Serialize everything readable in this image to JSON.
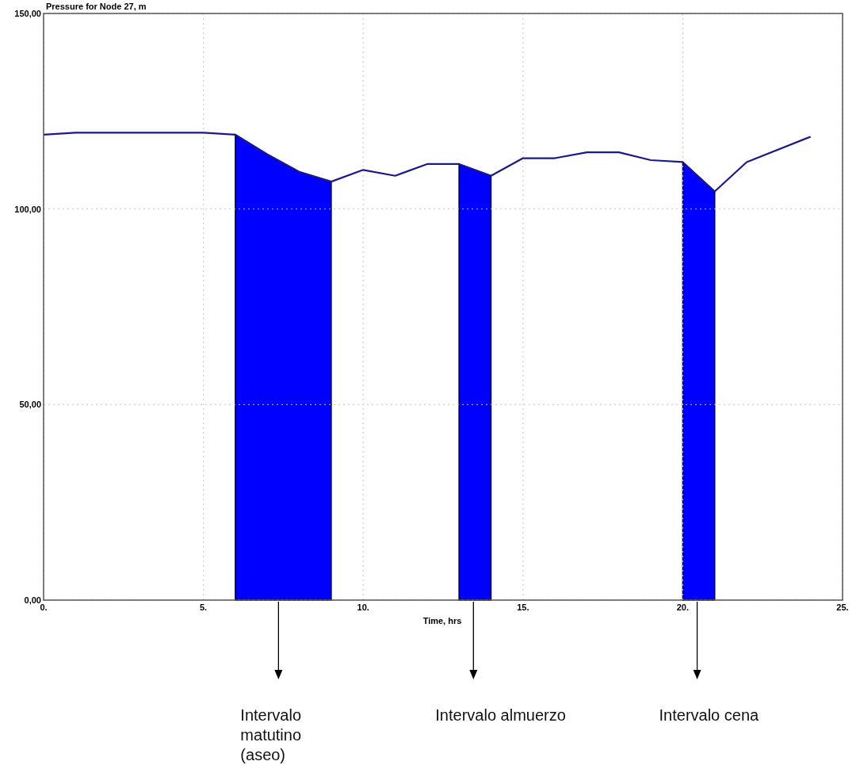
{
  "chart_data": {
    "type": "line",
    "title": "Pressure for Node 27, m",
    "xlabel": "Time, hrs",
    "xlim": [
      0,
      25
    ],
    "ylim": [
      0,
      150
    ],
    "xticks": [
      {
        "value": 0,
        "label": "0."
      },
      {
        "value": 5,
        "label": "5."
      },
      {
        "value": 10,
        "label": "10."
      },
      {
        "value": 15,
        "label": "15."
      },
      {
        "value": 20,
        "label": "20."
      },
      {
        "value": 25,
        "label": "25."
      }
    ],
    "yticks": [
      {
        "value": 0,
        "label": "0,00"
      },
      {
        "value": 50,
        "label": "50,00"
      },
      {
        "value": 100,
        "label": "100,00"
      },
      {
        "value": 150,
        "label": "150,00"
      }
    ],
    "grid": true,
    "marker": "none",
    "line_style": "solid",
    "series": [
      {
        "type": "area",
        "color": "#0000ff",
        "x": [
          6,
          7,
          8,
          9
        ],
        "values": [
          119,
          114,
          109.5,
          107
        ]
      },
      {
        "type": "area",
        "color": "#0000ff",
        "x": [
          13,
          14
        ],
        "values": [
          111.5,
          108.5
        ]
      },
      {
        "type": "area",
        "color": "#0000ff",
        "x": [
          20,
          21
        ],
        "values": [
          112,
          104.5
        ]
      },
      {
        "color": "#1a1a8c",
        "x": [
          0,
          1,
          5,
          6,
          7,
          8,
          9,
          10,
          11,
          12,
          13,
          14,
          15,
          16,
          17,
          18,
          19,
          20,
          21,
          22,
          24
        ],
        "values": [
          119,
          119.5,
          119.5,
          119,
          114,
          109.5,
          107,
          110,
          108.5,
          111.5,
          111.5,
          108.5,
          113,
          113,
          114.5,
          114.5,
          112.5,
          112,
          104.5,
          112,
          118.5
        ]
      }
    ],
    "annotations": [
      "Intervalo\nmatutino\n(aseo)",
      "Intervalo almuerzo",
      "Intervalo cena"
    ]
  }
}
